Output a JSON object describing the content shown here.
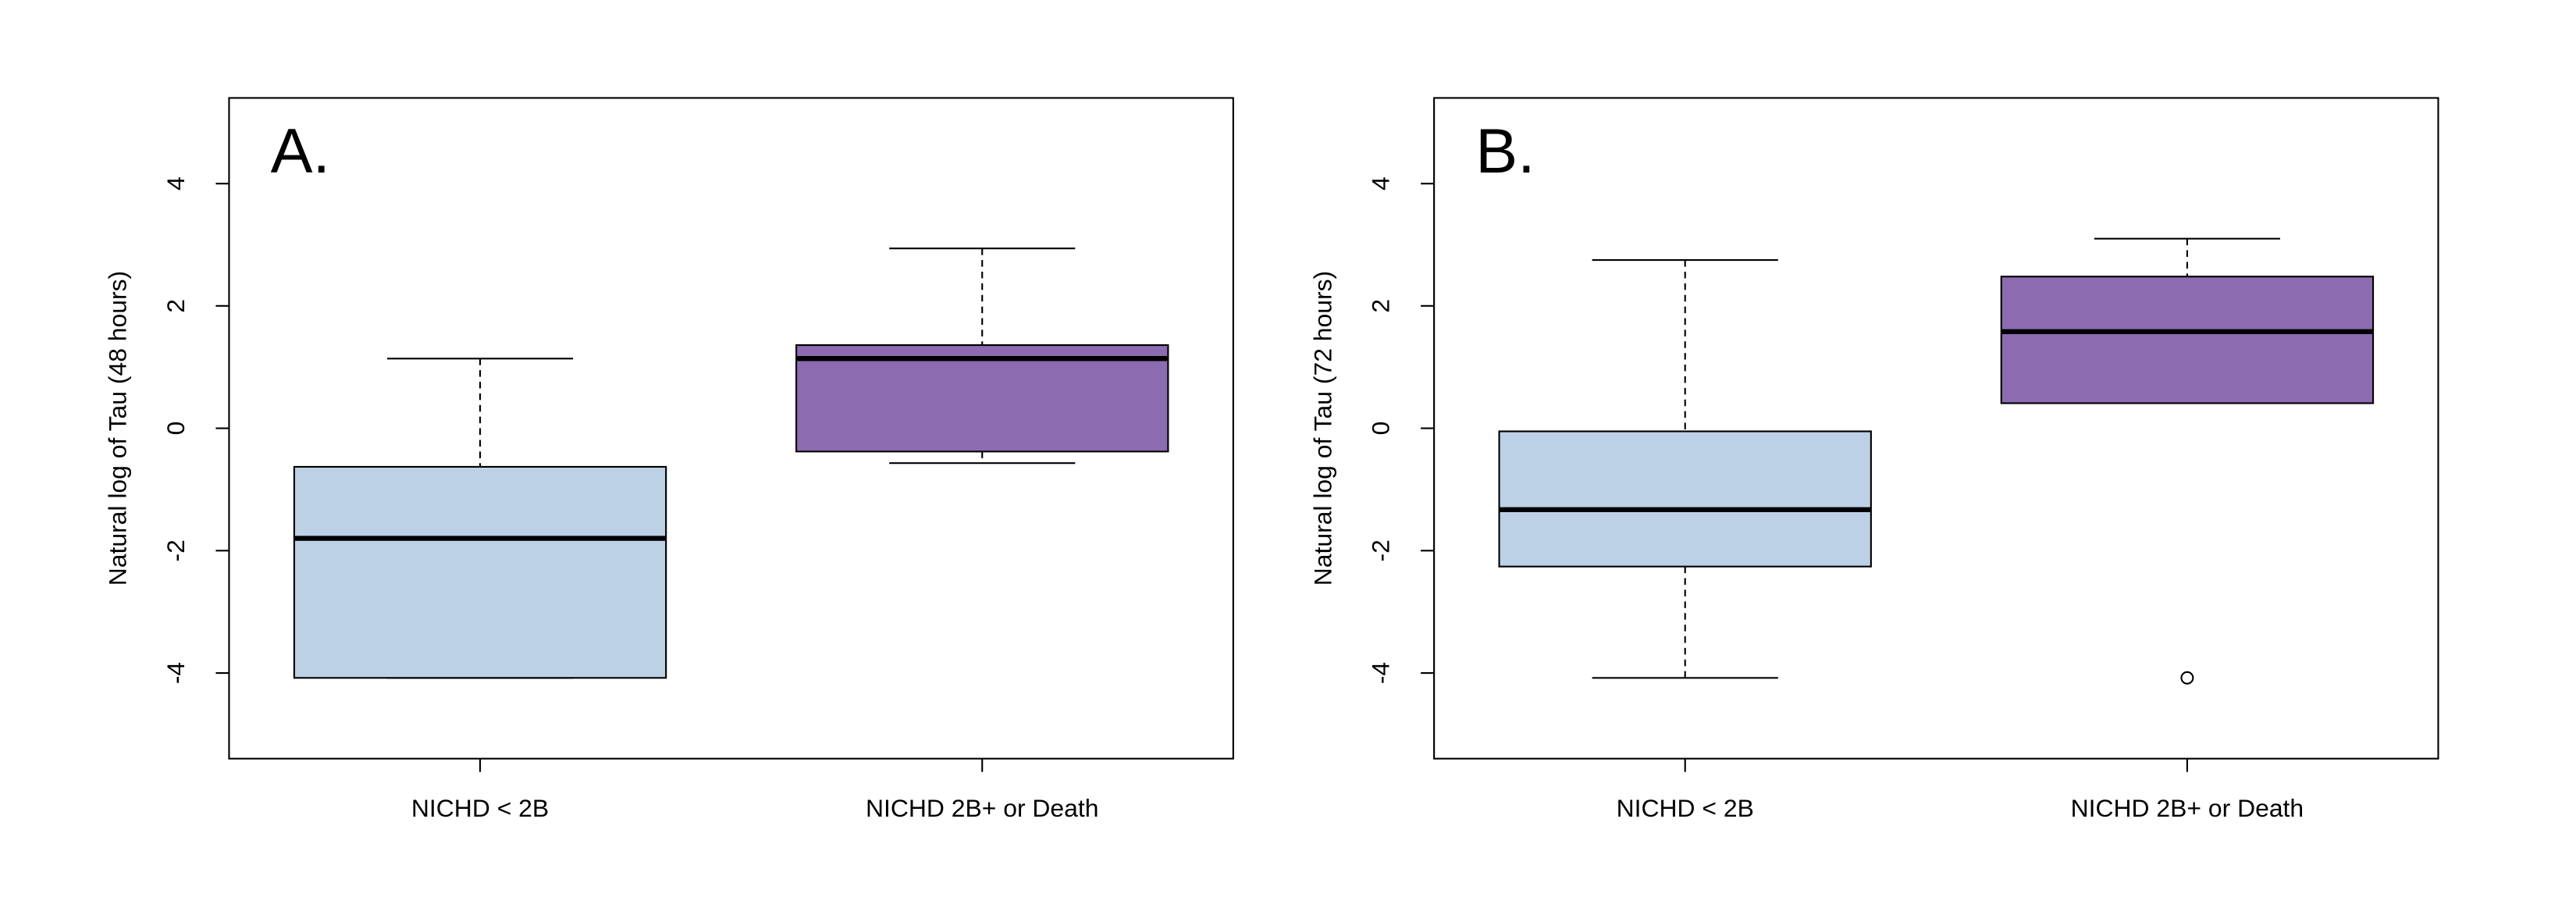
{
  "chart_data": [
    {
      "type": "box",
      "title": "A.",
      "y_label": "Natural log of Tau (48 hours)",
      "categories": [
        "NICHD < 2B",
        "NICHD 2B+ or Death"
      ],
      "colors": [
        "#bdd1e6",
        "#8c6bb1"
      ],
      "boxes": [
        {
          "min": -4.08,
          "q1": -4.08,
          "median": -1.8,
          "q3": -0.63,
          "max": 1.14,
          "outliers": []
        },
        {
          "min": -0.57,
          "q1": -0.38,
          "median": 1.14,
          "q3": 1.36,
          "max": 2.94,
          "outliers": []
        }
      ],
      "ylim": [
        -5.4,
        5.4
      ],
      "yticks": [
        -4,
        -2,
        0,
        2,
        4
      ]
    },
    {
      "type": "box",
      "title": "B.",
      "y_label": "Natural log of Tau (72 hours)",
      "categories": [
        "NICHD < 2B",
        "NICHD 2B+ or Death"
      ],
      "colors": [
        "#bdd1e6",
        "#8c6bb1"
      ],
      "boxes": [
        {
          "min": -4.08,
          "q1": -2.26,
          "median": -1.33,
          "q3": -0.05,
          "max": 2.75,
          "outliers": []
        },
        {
          "min": 0.41,
          "q1": 0.41,
          "median": 1.58,
          "q3": 2.48,
          "max": 3.1,
          "outliers": [
            -4.08
          ]
        }
      ],
      "ylim": [
        -5.4,
        5.4
      ],
      "yticks": [
        -4,
        -2,
        0,
        2,
        4
      ]
    }
  ]
}
